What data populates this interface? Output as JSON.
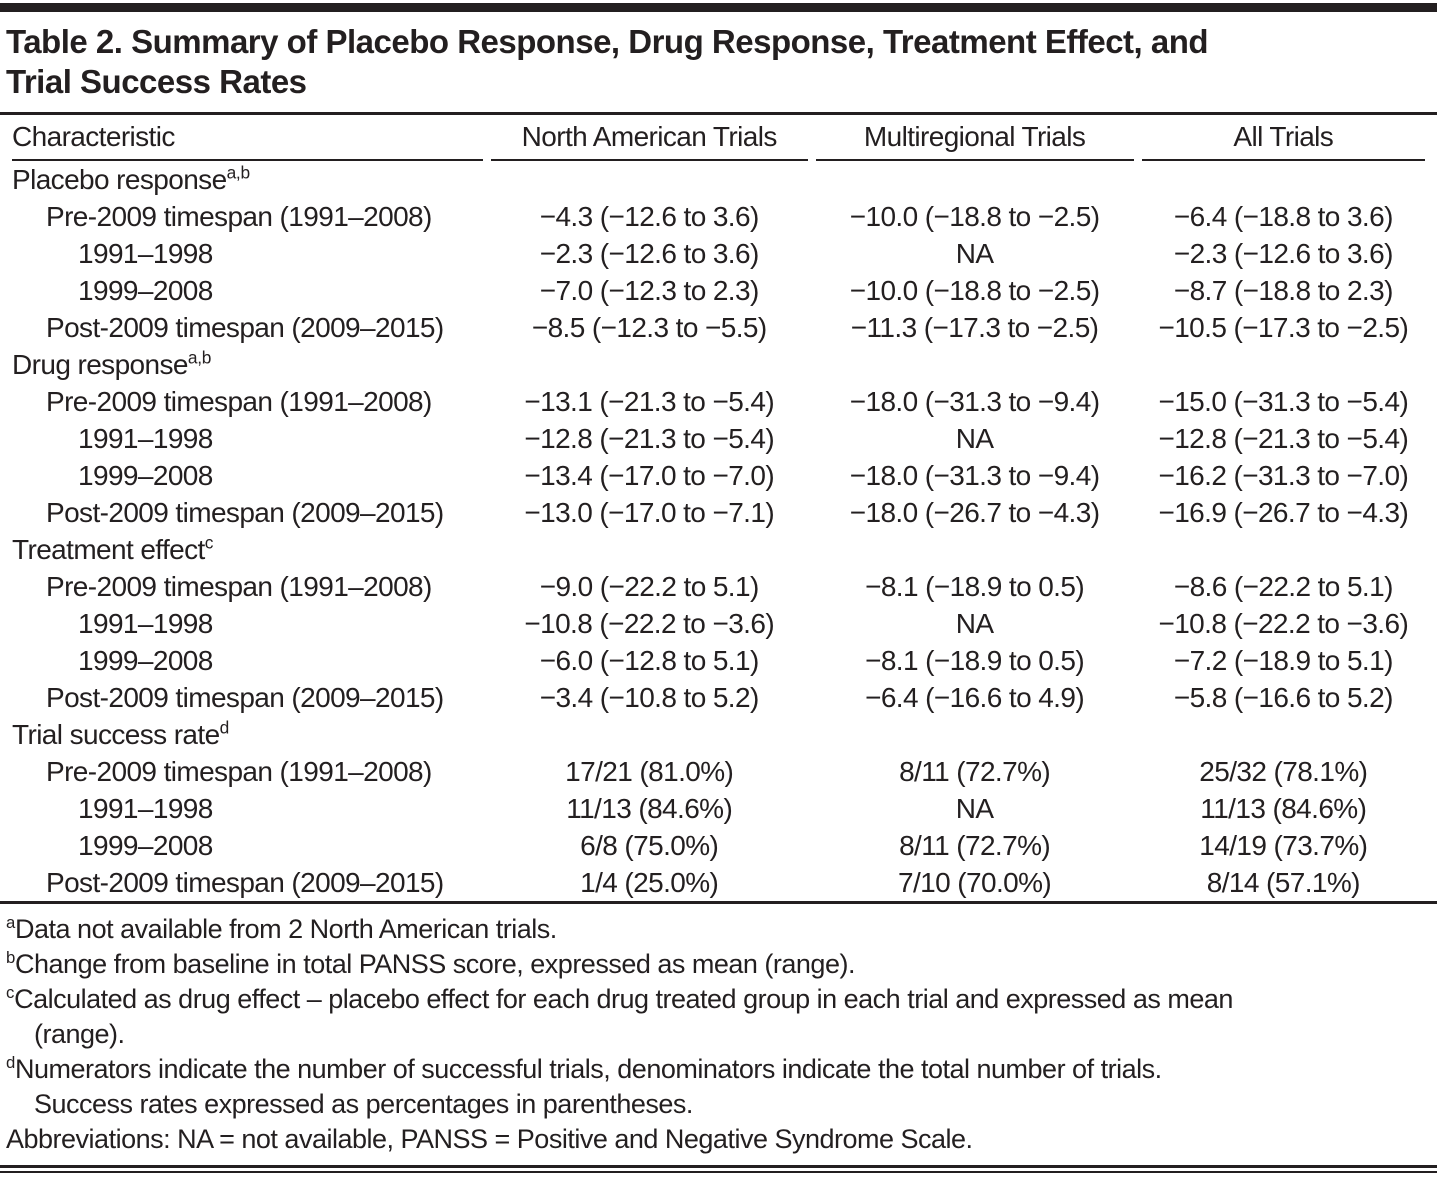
{
  "title_lines": [
    "Table 2. Summary of Placebo Response, Drug Response, Treatment Effect, and",
    "Trial Success Rates"
  ],
  "table": {
    "columns": [
      "Characteristic",
      "North American Trials",
      "Multiregional Trials",
      "All Trials"
    ],
    "sections": [
      {
        "label": "Placebo response",
        "footnote_marks": "a,b",
        "rows": [
          {
            "label": "Pre-2009 timespan (1991–2008)",
            "indent": 1,
            "values": [
              "−4.3 (−12.6 to 3.6)",
              "−10.0 (−18.8 to −2.5)",
              "−6.4 (−18.8 to 3.6)"
            ]
          },
          {
            "label": "1991–1998",
            "indent": 2,
            "values": [
              "−2.3 (−12.6 to 3.6)",
              "NA",
              "−2.3 (−12.6 to 3.6)"
            ]
          },
          {
            "label": "1999–2008",
            "indent": 2,
            "values": [
              "−7.0 (−12.3 to 2.3)",
              "−10.0 (−18.8 to −2.5)",
              "−8.7 (−18.8 to 2.3)"
            ]
          },
          {
            "label": "Post-2009 timespan (2009–2015)",
            "indent": 1,
            "values": [
              "−8.5 (−12.3 to −5.5)",
              "−11.3 (−17.3 to −2.5)",
              "−10.5 (−17.3 to −2.5)"
            ]
          }
        ]
      },
      {
        "label": "Drug response",
        "footnote_marks": "a,b",
        "rows": [
          {
            "label": "Pre-2009 timespan (1991–2008)",
            "indent": 1,
            "values": [
              "−13.1 (−21.3 to −5.4)",
              "−18.0 (−31.3 to −9.4)",
              "−15.0 (−31.3 to −5.4)"
            ]
          },
          {
            "label": "1991–1998",
            "indent": 2,
            "values": [
              "−12.8 (−21.3 to −5.4)",
              "NA",
              "−12.8 (−21.3 to −5.4)"
            ]
          },
          {
            "label": "1999–2008",
            "indent": 2,
            "values": [
              "−13.4 (−17.0 to −7.0)",
              "−18.0 (−31.3 to −9.4)",
              "−16.2 (−31.3 to −7.0)"
            ]
          },
          {
            "label": "Post-2009 timespan (2009–2015)",
            "indent": 1,
            "values": [
              "−13.0 (−17.0 to −7.1)",
              "−18.0 (−26.7 to −4.3)",
              "−16.9 (−26.7 to −4.3)"
            ]
          }
        ]
      },
      {
        "label": "Treatment effect",
        "footnote_marks": "c",
        "rows": [
          {
            "label": "Pre-2009 timespan (1991–2008)",
            "indent": 1,
            "values": [
              "−9.0 (−22.2 to 5.1)",
              "−8.1 (−18.9 to 0.5)",
              "−8.6 (−22.2 to 5.1)"
            ]
          },
          {
            "label": "1991–1998",
            "indent": 2,
            "values": [
              "−10.8 (−22.2 to −3.6)",
              "NA",
              "−10.8 (−22.2 to −3.6)"
            ]
          },
          {
            "label": "1999–2008",
            "indent": 2,
            "values": [
              "−6.0 (−12.8 to 5.1)",
              "−8.1 (−18.9 to 0.5)",
              "−7.2 (−18.9 to 5.1)"
            ]
          },
          {
            "label": "Post-2009 timespan (2009–2015)",
            "indent": 1,
            "values": [
              "−3.4 (−10.8 to 5.2)",
              "−6.4 (−16.6 to 4.9)",
              "−5.8 (−16.6 to 5.2)"
            ]
          }
        ]
      },
      {
        "label": "Trial success rate",
        "footnote_marks": "d",
        "rows": [
          {
            "label": "Pre-2009 timespan (1991–2008)",
            "indent": 1,
            "values": [
              "17/21 (81.0%)",
              "8/11 (72.7%)",
              "25/32 (78.1%)"
            ]
          },
          {
            "label": "1991–1998",
            "indent": 2,
            "values": [
              "11/13 (84.6%)",
              "NA",
              "11/13 (84.6%)"
            ]
          },
          {
            "label": "1999–2008",
            "indent": 2,
            "values": [
              "6/8 (75.0%)",
              "8/11 (72.7%)",
              "14/19 (73.7%)"
            ]
          },
          {
            "label": "Post-2009 timespan (2009–2015)",
            "indent": 1,
            "values": [
              "1/4 (25.0%)",
              "7/10 (70.0%)",
              "8/14 (57.1%)"
            ]
          }
        ]
      }
    ]
  },
  "footnotes": [
    {
      "mark": "a",
      "lines": [
        "Data not available from 2 North American trials."
      ]
    },
    {
      "mark": "b",
      "lines": [
        "Change from baseline in total PANSS score, expressed as mean (range)."
      ]
    },
    {
      "mark": "c",
      "lines": [
        "Calculated as drug effect – placebo effect for each drug treated group in each trial and expressed as mean",
        "(range)."
      ]
    },
    {
      "mark": "d",
      "lines": [
        "Numerators indicate the number of successful trials, denominators indicate the total number of trials.",
        "Success rates expressed as percentages in parentheses."
      ]
    }
  ],
  "abbreviations": "Abbreviations: NA = not available, PANSS = Positive and Negative Syndrome Scale.",
  "colors": {
    "ink": "#231f20",
    "background": "#ffffff"
  }
}
